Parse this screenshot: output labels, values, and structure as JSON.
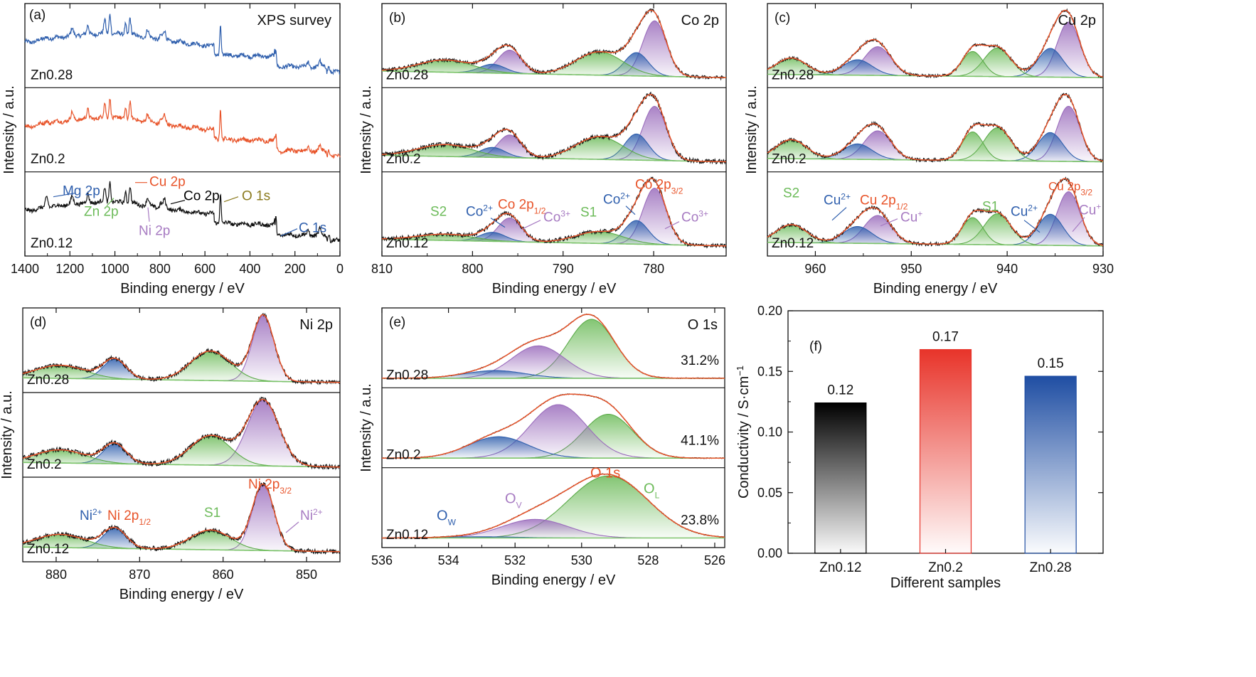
{
  "colors": {
    "black": "#000000",
    "orange": "#e8542a",
    "blue": "#2f5fad",
    "green": "#6dbb5a",
    "purple": "#a77bc2",
    "olive": "#8b7a1e",
    "bar_black": "#000000",
    "bar_red": "#e8342a",
    "bar_blue": "#1f4ea3"
  },
  "common": {
    "xlabel": "Binding energy / eV",
    "ylabel": "Intensity / a.u."
  },
  "chart_data": [
    {
      "id": "a",
      "type": "line",
      "panel_label": "(a)",
      "title": "XPS survey",
      "xlabel": "Binding energy / eV",
      "ylabel": "Intensity / a.u.",
      "xlim": [
        1400,
        0
      ],
      "xticks": [
        "1400",
        "1200",
        "1000",
        "800",
        "600",
        "400",
        "200",
        "0"
      ],
      "subplots": [
        "Zn0.28",
        "Zn0.2",
        "Zn0.12"
      ],
      "series": [
        {
          "name": "Zn0.28",
          "color": "blue"
        },
        {
          "name": "Zn0.2",
          "color": "orange"
        },
        {
          "name": "Zn0.12",
          "color": "black"
        }
      ],
      "peaks_ev": [
        1303,
        1022,
        933,
        780,
        530,
        285,
        50
      ],
      "annotations": [
        {
          "text": "Mg 2p",
          "color": "blue",
          "x": 1303
        },
        {
          "text": "Zn 2p",
          "color": "green",
          "x": 1022
        },
        {
          "text": "Cu 2p",
          "color": "orange",
          "x": 933
        },
        {
          "text": "Ni 2p",
          "color": "purple",
          "x": 855
        },
        {
          "text": "Co 2p",
          "color": "black",
          "x": 780
        },
        {
          "text": "O 1s",
          "color": "olive",
          "x": 531
        },
        {
          "text": "C 1s",
          "color": "blue",
          "x": 285
        }
      ]
    },
    {
      "id": "b",
      "type": "line",
      "panel_label": "(b)",
      "title": "Co 2p",
      "xlabel": "Binding energy / eV",
      "ylabel": "Intensity / a.u.",
      "xlim": [
        810,
        772
      ],
      "xticks": [
        "810",
        "800",
        "790",
        "780"
      ],
      "subplots": [
        "Zn0.28",
        "Zn0.2",
        "Zn0.12"
      ],
      "components": [
        "Co3+ 779.9",
        "Co2+ 781.9",
        "S1 786.0",
        "Co3+ 795.9",
        "Co2+ 797.8",
        "S2 803.0"
      ],
      "annotations": [
        "S2",
        "Co2+",
        "Co 2p1/2",
        "Co3+",
        "S1",
        "Co2+",
        "Co 2p3/2",
        "Co3+"
      ]
    },
    {
      "id": "c",
      "type": "line",
      "panel_label": "(c)",
      "title": "Cu 2p",
      "xlabel": "Binding energy / eV",
      "ylabel": "Intensity / a.u.",
      "xlim": [
        965,
        930
      ],
      "xticks": [
        "960",
        "950",
        "940",
        "930"
      ],
      "subplots": [
        "Zn0.28",
        "Zn0.2",
        "Zn0.12"
      ],
      "components": [
        "Cu+ 933.6",
        "Cu2+ 935.5",
        "S1 941.0",
        "S1' 943.6",
        "Cu+ 953.5",
        "Cu2+ 955.6",
        "S2 962.5"
      ],
      "annotations": [
        "S2",
        "Cu2+",
        "Cu 2p1/2",
        "Cu+",
        "S1",
        "Cu2+",
        "Cu 2p3/2",
        "Cu+"
      ]
    },
    {
      "id": "d",
      "type": "line",
      "panel_label": "(d)",
      "title": "Ni 2p",
      "xlabel": "Binding energy / eV",
      "ylabel": "Intensity / a.u.",
      "xlim": [
        884,
        846
      ],
      "xticks": [
        "880",
        "870",
        "860",
        "850"
      ],
      "subplots": [
        "Zn0.28",
        "Zn0.2",
        "Zn0.12"
      ],
      "components": [
        "Ni2+ 855.2",
        "S1 861.5",
        "Ni2+ 873.0",
        "S2 879.5"
      ],
      "annotations": [
        "Ni2+",
        "Ni 2p1/2",
        "S1",
        "Ni 2p3/2",
        "Ni2+"
      ]
    },
    {
      "id": "e",
      "type": "line",
      "panel_label": "(e)",
      "title": "O 1s",
      "xlabel": "Binding energy / eV",
      "ylabel": "Intensity / a.u.",
      "xlim": [
        536,
        525.7
      ],
      "xticks": [
        "536",
        "534",
        "532",
        "530",
        "528",
        "526"
      ],
      "subplots": [
        "Zn0.28",
        "Zn0.2",
        "Zn0.12"
      ],
      "percentages": [
        "31.2%",
        "41.1%",
        "23.8%"
      ],
      "components": [
        "OL 529.3",
        "OV 531.3",
        "OW 532.6"
      ],
      "annotations": [
        "OW",
        "OV",
        "O 1s",
        "OL"
      ]
    },
    {
      "id": "f",
      "type": "bar",
      "panel_label": "(f)",
      "xlabel": "Different samples",
      "ylabel": "Conductivity / S·cm−1",
      "categories": [
        "Zn0.12",
        "Zn0.2",
        "Zn0.28"
      ],
      "values": [
        0.124,
        0.168,
        0.146
      ],
      "value_labels": [
        "0.12",
        "0.17",
        "0.15"
      ],
      "bar_colors": [
        "bar_black",
        "bar_red",
        "bar_blue"
      ],
      "ylim": [
        0,
        0.2
      ],
      "yticks": [
        "0.00",
        "0.05",
        "0.10",
        "0.15",
        "0.20"
      ]
    }
  ]
}
